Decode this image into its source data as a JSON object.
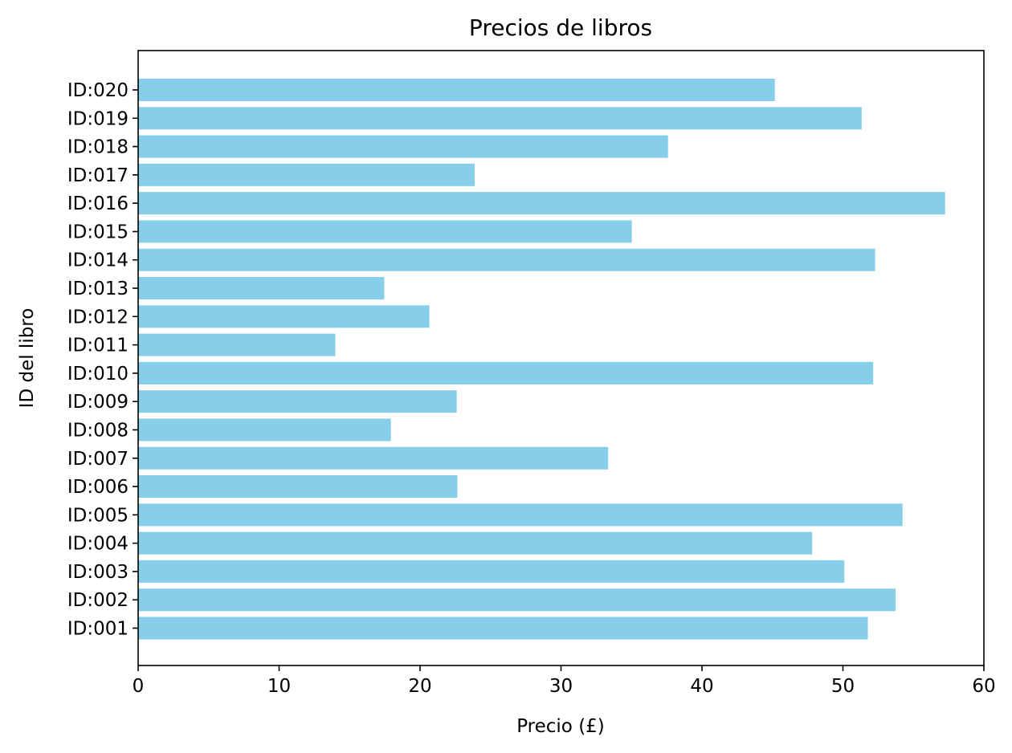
{
  "chart_data": {
    "type": "bar",
    "orientation": "horizontal",
    "title": "Precios de libros",
    "xlabel": "Precio (£)",
    "ylabel": "ID del libro",
    "xlim": [
      0,
      60
    ],
    "xticks": [
      "0",
      "10",
      "20",
      "30",
      "40",
      "50",
      "60"
    ],
    "grid": false,
    "bar_color": "#87CEEB",
    "categories": [
      "ID:001",
      "ID:002",
      "ID:003",
      "ID:004",
      "ID:005",
      "ID:006",
      "ID:007",
      "ID:008",
      "ID:009",
      "ID:010",
      "ID:011",
      "ID:012",
      "ID:013",
      "ID:014",
      "ID:015",
      "ID:016",
      "ID:017",
      "ID:018",
      "ID:019",
      "ID:020"
    ],
    "values": [
      51.77,
      53.74,
      50.1,
      47.82,
      54.23,
      22.65,
      33.34,
      17.93,
      22.6,
      52.15,
      13.99,
      20.66,
      17.46,
      52.29,
      35.02,
      57.25,
      23.88,
      37.59,
      51.33,
      45.17
    ]
  }
}
